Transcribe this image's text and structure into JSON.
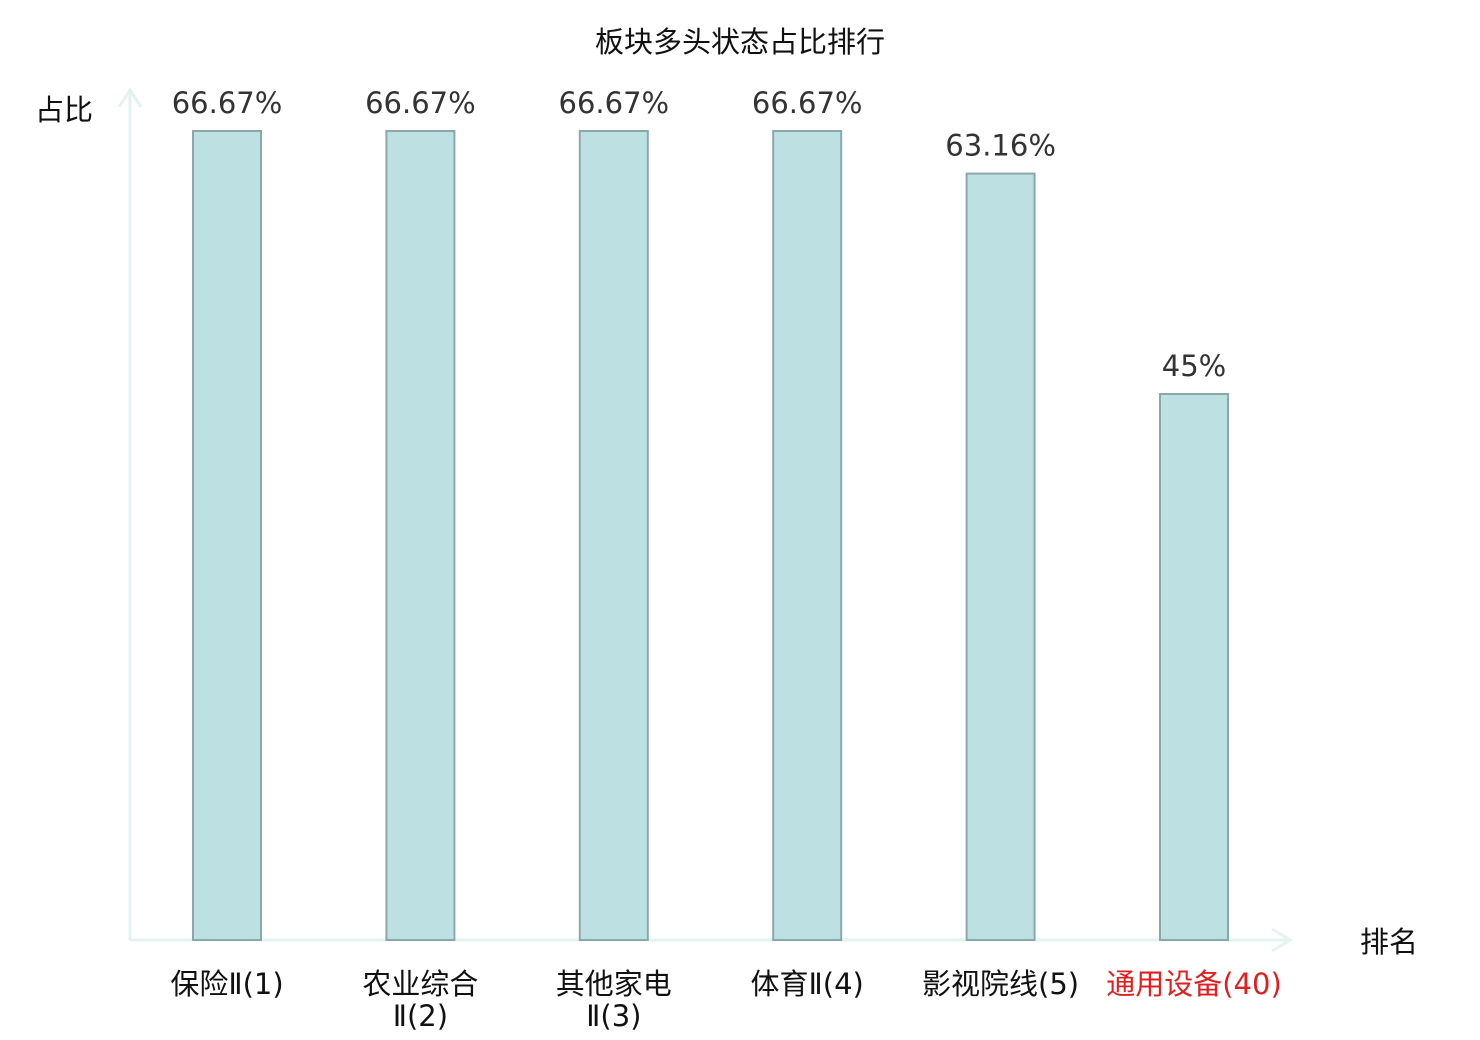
{
  "chart_data": {
    "type": "bar",
    "title": "板块多头状态占比排行",
    "ylabel": "占比",
    "xlabel": "排名",
    "categories": [
      [
        "保险Ⅱ(1)"
      ],
      [
        "农业综合",
        "Ⅱ(2)"
      ],
      [
        "其他家电",
        "Ⅱ(3)"
      ],
      [
        "体育Ⅱ(4)"
      ],
      [
        "影视院线(5)"
      ],
      [
        "通用设备(40)"
      ]
    ],
    "values": [
      66.67,
      66.67,
      66.67,
      66.67,
      63.16,
      45
    ],
    "value_labels": [
      "66.67%",
      "66.67%",
      "66.67%",
      "66.67%",
      "63.16%",
      "45%"
    ],
    "highlight_index": 5,
    "ylim": [
      0,
      70
    ],
    "grid": false,
    "legend": "none",
    "colors": {
      "bar_fill": "#bde1e3",
      "bar_stroke": "#8aa8aa",
      "axis": "#e3f3f1",
      "highlight_text": "#e02020"
    }
  }
}
